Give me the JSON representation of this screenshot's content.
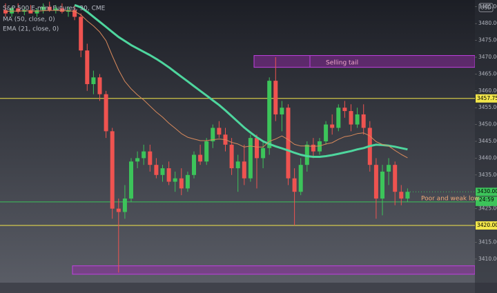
{
  "chart_data": {
    "type": "candlestick",
    "title": "S&P 500 E-mini Futures, 30, CME",
    "currency": "USD",
    "ylim": [
      3403,
      3487
    ],
    "yticks": [
      {
        "value": 3410,
        "label": "3410.00"
      },
      {
        "value": 3415,
        "label": "3415.00"
      },
      {
        "value": 3425,
        "label": "3425.00"
      },
      {
        "value": 3435,
        "label": "3435.00"
      },
      {
        "value": 3440,
        "label": "3440.00"
      },
      {
        "value": 3445,
        "label": "3445.00"
      },
      {
        "value": 3450,
        "label": "3450.00"
      },
      {
        "value": 3455,
        "label": "3455.00"
      },
      {
        "value": 3460,
        "label": "3460.00"
      },
      {
        "value": 3465,
        "label": "3465.00"
      },
      {
        "value": 3470,
        "label": "3470.00"
      },
      {
        "value": 3475,
        "label": "3475.00"
      },
      {
        "value": 3480,
        "label": "3480.00"
      },
      {
        "value": 3485,
        "label": "3485.00"
      }
    ],
    "up_color": "#3cc45a",
    "down_color": "#ef5350",
    "ohlc": [
      [
        3484,
        3486,
        3482,
        3483
      ],
      [
        3483,
        3485,
        3482,
        3484.5
      ],
      [
        3484.5,
        3486,
        3483,
        3483.5
      ],
      [
        3483.5,
        3485,
        3482.5,
        3484
      ],
      [
        3484,
        3485.5,
        3483,
        3483
      ],
      [
        3483,
        3484.5,
        3482,
        3484
      ],
      [
        3484,
        3486,
        3483,
        3485
      ],
      [
        3485,
        3486.5,
        3483.5,
        3484
      ],
      [
        3484,
        3485.5,
        3483,
        3484.5
      ],
      [
        3484.5,
        3486,
        3483,
        3483.5
      ],
      [
        3483.5,
        3485,
        3482,
        3484
      ],
      [
        3484,
        3485.5,
        3481,
        3482
      ],
      [
        3482,
        3483,
        3470,
        3472
      ],
      [
        3472,
        3474,
        3460,
        3462
      ],
      [
        3462,
        3466,
        3459,
        3464
      ],
      [
        3464,
        3465,
        3457,
        3459
      ],
      [
        3459,
        3460,
        3446,
        3448
      ],
      [
        3448,
        3449,
        3422,
        3425
      ],
      [
        3425,
        3428,
        3406,
        3424
      ],
      [
        3424,
        3432,
        3422,
        3428
      ],
      [
        3428,
        3440,
        3427,
        3439
      ],
      [
        3439,
        3442,
        3437,
        3440
      ],
      [
        3440,
        3444,
        3438,
        3442
      ],
      [
        3442,
        3444,
        3436,
        3438
      ],
      [
        3438,
        3440,
        3434,
        3435
      ],
      [
        3435,
        3438,
        3433,
        3437
      ],
      [
        3437,
        3439,
        3432,
        3433
      ],
      [
        3433,
        3436,
        3430,
        3434
      ],
      [
        3434,
        3437,
        3429,
        3431
      ],
      [
        3431,
        3436,
        3430,
        3435
      ],
      [
        3435,
        3442,
        3434,
        3441
      ],
      [
        3441,
        3444,
        3438,
        3439
      ],
      [
        3439,
        3446,
        3438,
        3445
      ],
      [
        3445,
        3450,
        3443,
        3449
      ],
      [
        3449,
        3451,
        3446,
        3447
      ],
      [
        3447,
        3449,
        3442,
        3444
      ],
      [
        3444,
        3446,
        3435,
        3437
      ],
      [
        3437,
        3441,
        3430,
        3439
      ],
      [
        3439,
        3444,
        3432,
        3434
      ],
      [
        3434,
        3447,
        3433,
        3446
      ],
      [
        3446,
        3447,
        3431,
        3440
      ],
      [
        3440,
        3445,
        3437,
        3443
      ],
      [
        3443,
        3464,
        3441,
        3463
      ],
      [
        3463,
        3470,
        3451,
        3453
      ],
      [
        3453,
        3457,
        3448,
        3455
      ],
      [
        3455,
        3456,
        3432,
        3434
      ],
      [
        3434,
        3437,
        3420,
        3430
      ],
      [
        3430,
        3440,
        3429,
        3438
      ],
      [
        3438,
        3445,
        3436,
        3444
      ],
      [
        3444,
        3446,
        3440,
        3442
      ],
      [
        3442,
        3446,
        3441,
        3445
      ],
      [
        3445,
        3451,
        3444,
        3450
      ],
      [
        3450,
        3453,
        3447,
        3449
      ],
      [
        3449,
        3456,
        3448,
        3455
      ],
      [
        3455,
        3457,
        3452,
        3454
      ],
      [
        3454,
        3456,
        3448,
        3450
      ],
      [
        3450,
        3455,
        3449,
        3453
      ],
      [
        3453,
        3456,
        3447,
        3449
      ],
      [
        3449,
        3451,
        3436,
        3438
      ],
      [
        3438,
        3440,
        3422,
        3428
      ],
      [
        3428,
        3438,
        3423,
        3436
      ],
      [
        3436,
        3440,
        3432,
        3438
      ],
      [
        3438,
        3439,
        3426,
        3430
      ],
      [
        3430,
        3432,
        3426,
        3428
      ],
      [
        3428,
        3431,
        3427,
        3430
      ]
    ],
    "series": [
      {
        "name": "MA (50, close, 0)",
        "color": "#4ed69e",
        "width": 3,
        "values": [
          null,
          null,
          null,
          null,
          null,
          null,
          null,
          null,
          null,
          null,
          null,
          3485.5,
          3484.8,
          3483.5,
          3482,
          3480.5,
          3479,
          3477.5,
          3476,
          3474.8,
          3473.6,
          3472.6,
          3471.6,
          3470.6,
          3469.5,
          3468.3,
          3467,
          3465.6,
          3464.2,
          3462.8,
          3461.4,
          3460,
          3458.6,
          3457.2,
          3455.8,
          3454.2,
          3452.5,
          3450.8,
          3449.1,
          3447.6,
          3446.2,
          3445,
          3444.2,
          3443.5,
          3442.9,
          3442.3,
          3441.6,
          3441,
          3440.6,
          3440.4,
          3440.4,
          3440.6,
          3440.9,
          3441.3,
          3441.7,
          3442.1,
          3442.6,
          3443,
          3443.6,
          3444,
          3443.9,
          3443.7,
          3443.4,
          3443,
          3442.6
        ]
      },
      {
        "name": "EMA (21, close, 0)",
        "color": "#d98a5c",
        "width": 1,
        "values": [
          3483.6,
          3483.7,
          3483.7,
          3483.8,
          3483.7,
          3483.7,
          3483.8,
          3483.9,
          3483.9,
          3483.8,
          3483.8,
          3483.6,
          3482.6,
          3480.8,
          3479.3,
          3477.5,
          3474.9,
          3470.4,
          3466.2,
          3462.8,
          3460.6,
          3458.8,
          3457.3,
          3455.5,
          3453.7,
          3452.2,
          3450.4,
          3448.9,
          3447.3,
          3446.2,
          3445.7,
          3445.2,
          3445.2,
          3445.5,
          3445.7,
          3445.5,
          3444.7,
          3444.2,
          3443.3,
          3443.6,
          3443.3,
          3443.3,
          3445,
          3445.7,
          3446.6,
          3445.5,
          3444.1,
          3443.6,
          3443.6,
          3443.5,
          3443.6,
          3444.2,
          3444.6,
          3445.6,
          3446.4,
          3446.7,
          3447.3,
          3447.5,
          3446.6,
          3444.9,
          3444.1,
          3443.6,
          3442.3,
          3441.1,
          3440.1
        ]
      }
    ],
    "levels": [
      {
        "value": 3457.75,
        "label": "3457.75",
        "color": "#f2e64a"
      },
      {
        "value": 3430,
        "label": "3430.00",
        "color": "#3cc45a",
        "dashed": true
      },
      {
        "value": 3427,
        "label": "3427.00",
        "color": "#3cc45a"
      },
      {
        "value": 3420,
        "label": "3420.00",
        "color": "#f2e64a"
      }
    ],
    "countdown": "24:59",
    "zones": [
      {
        "label": "Selling tail",
        "ylim": [
          3467,
          3470.5
        ],
        "color": "#9c27b0"
      },
      {
        "ylim": [
          3405.5,
          3408
        ],
        "color": "#9c27b0"
      }
    ],
    "annotation": "Poor and weak low"
  }
}
